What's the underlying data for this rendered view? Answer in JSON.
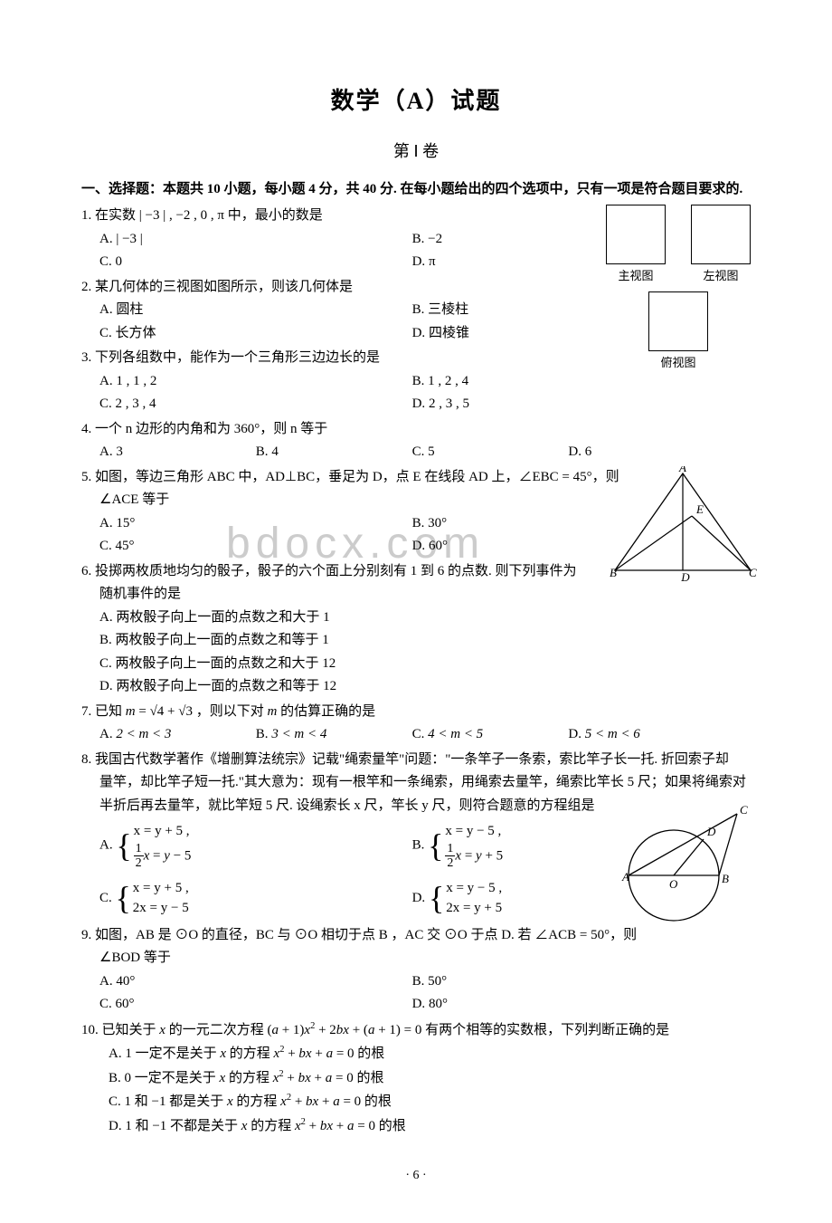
{
  "title": "数学（A）试题",
  "subtitle": "第 Ⅰ 卷",
  "section_header": "一、选择题：本题共 10 小题，每小题 4 分，共 40 分. 在每小题给出的四个选项中，只有一项是符合题目要求的.",
  "page_number": "· 6 ·",
  "watermark": "bdocx.com",
  "views_labels": {
    "front": "主视图",
    "left": "左视图",
    "top": "俯视图"
  },
  "fig_triangle": {
    "A": "A",
    "B": "B",
    "C": "C",
    "D": "D",
    "E": "E"
  },
  "fig_circle": {
    "A": "A",
    "B": "B",
    "C": "C",
    "D": "D",
    "O": "O"
  },
  "questions": [
    {
      "num": "1.",
      "stem": "在实数 | −3 | , −2 , 0 , π 中，最小的数是",
      "opts": [
        {
          "label": "A.",
          "text": "| −3 |"
        },
        {
          "label": "B.",
          "text": "−2"
        },
        {
          "label": "C.",
          "text": "0"
        },
        {
          "label": "D.",
          "text": "π"
        }
      ],
      "layout": 2
    },
    {
      "num": "2.",
      "stem": "某几何体的三视图如图所示，则该几何体是",
      "opts": [
        {
          "label": "A.",
          "text": "圆柱"
        },
        {
          "label": "B.",
          "text": "三棱柱"
        },
        {
          "label": "C.",
          "text": "长方体"
        },
        {
          "label": "D.",
          "text": "四棱锥"
        }
      ],
      "layout": 2
    },
    {
      "num": "3.",
      "stem": "下列各组数中，能作为一个三角形三边边长的是",
      "opts": [
        {
          "label": "A.",
          "text": "1 , 1 , 2"
        },
        {
          "label": "B.",
          "text": "1 , 2 , 4"
        },
        {
          "label": "C.",
          "text": "2 , 3 , 4"
        },
        {
          "label": "D.",
          "text": "2 , 3 , 5"
        }
      ],
      "layout": 2
    },
    {
      "num": "4.",
      "stem": "一个 n 边形的内角和为 360°，则 n 等于",
      "opts": [
        {
          "label": "A.",
          "text": "3"
        },
        {
          "label": "B.",
          "text": "4"
        },
        {
          "label": "C.",
          "text": "5"
        },
        {
          "label": "D.",
          "text": "6"
        }
      ],
      "layout": 4
    },
    {
      "num": "5.",
      "stem": "如图，等边三角形 ABC 中，AD⊥BC，垂足为 D，点 E 在线段 AD 上，∠EBC = 45°，则",
      "stem2": "∠ACE 等于",
      "opts": [
        {
          "label": "A.",
          "text": "15°"
        },
        {
          "label": "B.",
          "text": "30°"
        },
        {
          "label": "C.",
          "text": "45°"
        },
        {
          "label": "D.",
          "text": "60°"
        }
      ],
      "layout": 2
    },
    {
      "num": "6.",
      "stem": "投掷两枚质地均匀的骰子，骰子的六个面上分别刻有 1 到 6 的点数. 则下列事件为",
      "stem2": "随机事件的是",
      "opts": [
        {
          "label": "A.",
          "text": "两枚骰子向上一面的点数之和大于 1"
        },
        {
          "label": "B.",
          "text": "两枚骰子向上一面的点数之和等于 1"
        },
        {
          "label": "C.",
          "text": "两枚骰子向上一面的点数之和大于 12"
        },
        {
          "label": "D.",
          "text": "两枚骰子向上一面的点数之和等于 12"
        }
      ],
      "layout": 1
    },
    {
      "num": "7.",
      "stem_html": "已知 <i>m</i> = √4 + √3 ，则以下对 <i>m</i> 的估算正确的是",
      "opts": [
        {
          "label": "A.",
          "text": "2 < m < 3"
        },
        {
          "label": "B.",
          "text": "3 < m < 4"
        },
        {
          "label": "C.",
          "text": "4 < m < 5"
        },
        {
          "label": "D.",
          "text": "5 < m < 6"
        }
      ],
      "layout": 4
    },
    {
      "num": "8.",
      "stem": "我国古代数学著作《增删算法统宗》记载\"绳索量竿\"问题：\"一条竿子一条索，索比竿子长一托. 折回索子却",
      "stem2": "量竿，却比竿子短一托.\"其大意为：现有一根竿和一条绳索，用绳索去量竿，绳索比竿长 5 尺；如果将绳索对",
      "stem3": "半折后再去量竿，就比竿短 5 尺. 设绳索长 x 尺，竿长 y 尺，则符合题意的方程组是",
      "systems": {
        "A": {
          "l1": "x = y + 5 ,",
          "l2_frac": "1/2",
          "l2_rest": "x = y − 5"
        },
        "B": {
          "l1": "x = y − 5 ,",
          "l2_frac": "1/2",
          "l2_rest": "x = y + 5"
        },
        "C": {
          "l1": "x = y + 5 ,",
          "l2": "2x = y − 5"
        },
        "D": {
          "l1": "x = y − 5 ,",
          "l2": "2x = y + 5"
        }
      }
    },
    {
      "num": "9.",
      "stem": "如图，AB 是 ⊙O 的直径，BC 与 ⊙O 相切于点 B ，AC 交 ⊙O 于点 D. 若 ∠ACB = 50°，则",
      "stem2": "∠BOD 等于",
      "opts": [
        {
          "label": "A.",
          "text": "40°"
        },
        {
          "label": "B.",
          "text": "50°"
        },
        {
          "label": "C.",
          "text": "60°"
        },
        {
          "label": "D.",
          "text": "80°"
        }
      ],
      "layout": 2
    },
    {
      "num": "10.",
      "stem_html": "已知关于 <i>x</i> 的一元二次方程 (<i>a</i> + 1)<i>x</i><sup>2</sup> + 2<i>bx</i> + (<i>a</i> + 1) = 0 有两个相等的实数根，下列判断正确的是",
      "opts_html": [
        "A. 1 一定不是关于 <i>x</i> 的方程 <i>x</i><sup>2</sup> + <i>bx</i> + <i>a</i> = 0 的根",
        "B. 0 一定不是关于 <i>x</i> 的方程 <i>x</i><sup>2</sup> + <i>bx</i> + <i>a</i> = 0 的根",
        "C. 1 和 −1 都是关于 <i>x</i> 的方程 <i>x</i><sup>2</sup> + <i>bx</i> + <i>a</i> = 0 的根",
        "D. 1 和 −1 不都是关于 <i>x</i> 的方程 <i>x</i><sup>2</sup> + <i>bx</i> + <i>a</i> = 0 的根"
      ]
    }
  ]
}
